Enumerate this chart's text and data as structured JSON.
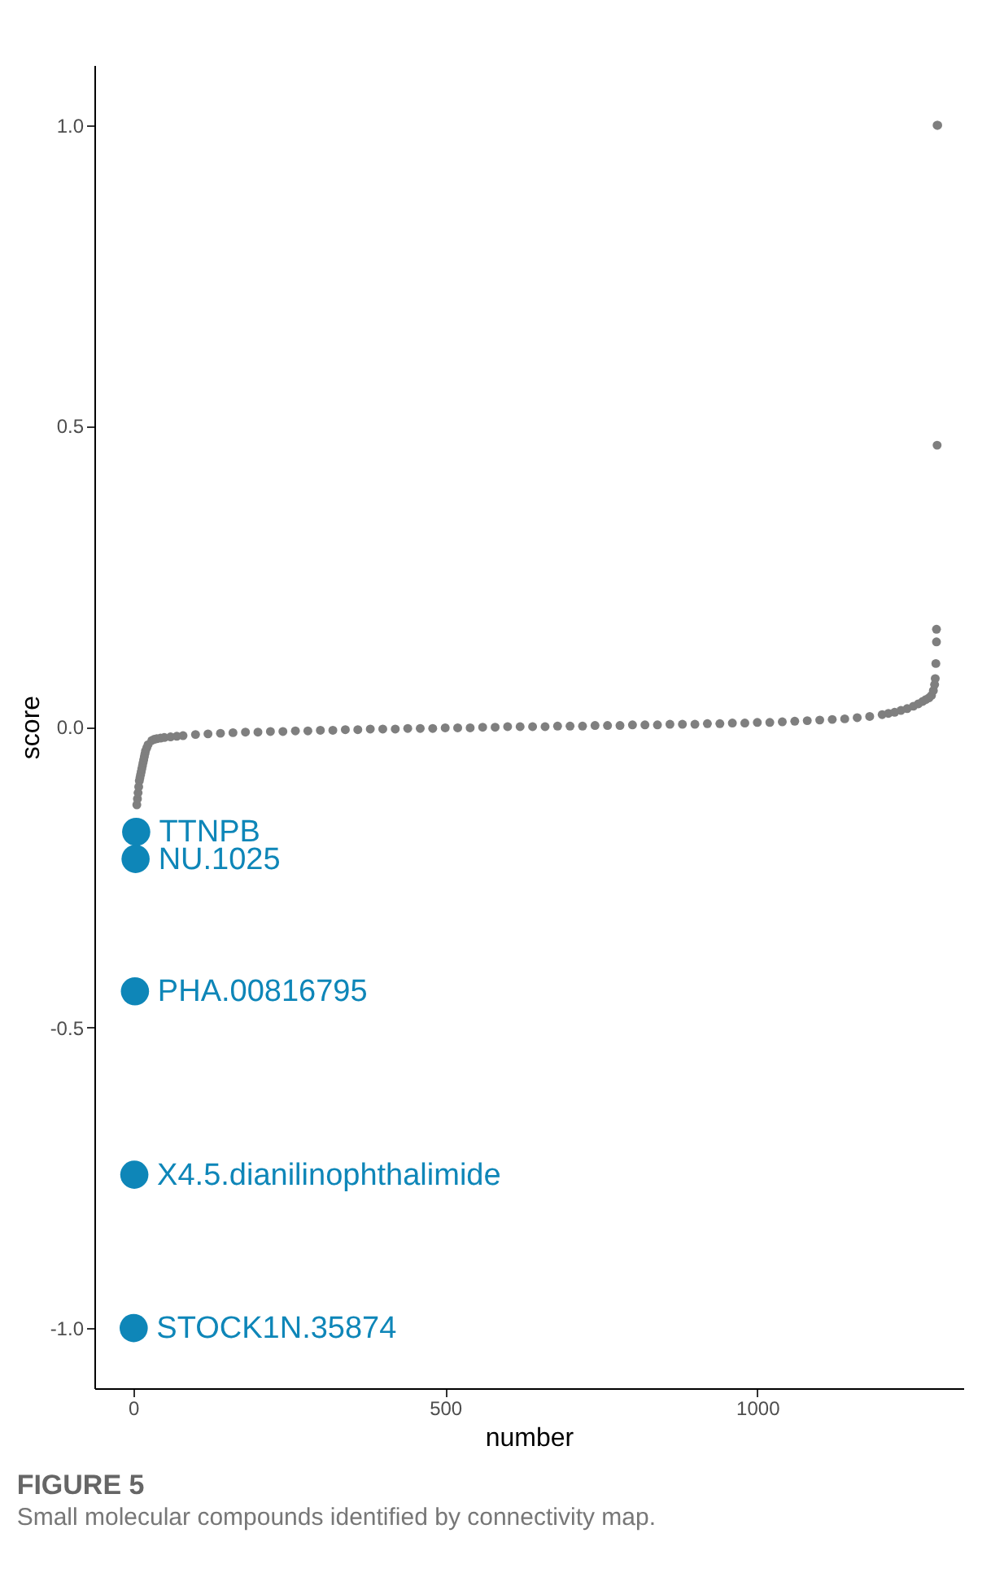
{
  "chart_data": {
    "type": "scatter",
    "title": "FIGURE 5",
    "subtitle": "Small molecular compounds identified by connectivity map.",
    "xlabel": "number",
    "ylabel": "score",
    "xlim": [
      -62,
      1330
    ],
    "ylim": [
      -1.1,
      1.1
    ],
    "xticks": [
      0,
      500,
      1000
    ],
    "yticks": [
      {
        "value": -1.0,
        "label": "-1.0"
      },
      {
        "value": -0.5,
        "label": "-0.5"
      },
      {
        "value": 0.0,
        "label": "0.0"
      },
      {
        "value": 0.5,
        "label": "0.5"
      },
      {
        "value": 1.0,
        "label": "1.0"
      }
    ],
    "grid": false,
    "series": [
      {
        "color": "#7f7f7f",
        "x": [
          6,
          7,
          8,
          9,
          10,
          11,
          12,
          13,
          14,
          15,
          16,
          17,
          18,
          19,
          20,
          22,
          24,
          30,
          34,
          38,
          44,
          50,
          60,
          70,
          80,
          100,
          120,
          140,
          160,
          180,
          200,
          220,
          240,
          260,
          280,
          300,
          320,
          340,
          360,
          380,
          400,
          420,
          440,
          460,
          480,
          500,
          520,
          540,
          560,
          580,
          600,
          620,
          640,
          660,
          680,
          700,
          720,
          740,
          760,
          780,
          800,
          820,
          840,
          860,
          880,
          900,
          920,
          940,
          960,
          980,
          1000,
          1020,
          1040,
          1060,
          1080,
          1100,
          1120,
          1140,
          1160,
          1180,
          1200,
          1210,
          1220,
          1230,
          1240,
          1250,
          1258,
          1265,
          1270,
          1275,
          1279,
          1282,
          1284,
          1285,
          1286,
          1287,
          1287,
          1288,
          1288,
          1289
        ],
        "values": [
          -0.13,
          -0.12,
          -0.11,
          -0.1,
          -0.09,
          -0.085,
          -0.08,
          -0.075,
          -0.07,
          -0.065,
          -0.06,
          -0.055,
          -0.05,
          -0.045,
          -0.04,
          -0.035,
          -0.03,
          -0.023,
          -0.021,
          -0.02,
          -0.019,
          -0.018,
          -0.017,
          -0.016,
          -0.015,
          -0.013,
          -0.012,
          -0.011,
          -0.01,
          -0.009,
          -0.009,
          -0.008,
          -0.008,
          -0.007,
          -0.007,
          -0.006,
          -0.006,
          -0.005,
          -0.005,
          -0.004,
          -0.004,
          -0.004,
          -0.003,
          -0.003,
          -0.003,
          -0.002,
          -0.002,
          -0.002,
          -0.001,
          -0.001,
          0.0,
          0.0,
          0.0,
          0.0,
          0.001,
          0.001,
          0.001,
          0.002,
          0.002,
          0.002,
          0.003,
          0.003,
          0.003,
          0.004,
          0.004,
          0.004,
          0.005,
          0.005,
          0.006,
          0.006,
          0.007,
          0.007,
          0.008,
          0.009,
          0.01,
          0.011,
          0.012,
          0.013,
          0.015,
          0.017,
          0.02,
          0.022,
          0.024,
          0.027,
          0.03,
          0.034,
          0.038,
          0.042,
          0.045,
          0.048,
          0.052,
          0.06,
          0.07,
          0.08,
          0.105,
          0.141,
          0.162,
          0.468,
          1.0,
          1.0
        ]
      },
      {
        "color": "#0e86b8",
        "x": [
          1,
          2,
          3,
          4,
          5
        ],
        "values": [
          -1.0,
          -0.745,
          -0.44,
          -0.22,
          -0.175
        ]
      }
    ],
    "annotations": [
      {
        "text": "STOCK1N.35874",
        "x": 1,
        "y": -1.0
      },
      {
        "text": "X4.5.dianilinophthalimide",
        "x": 2,
        "y": -0.745
      },
      {
        "text": "PHA.00816795",
        "x": 3,
        "y": -0.44
      },
      {
        "text": "NU.1025",
        "x": 4,
        "y": -0.22
      },
      {
        "text": "TTNPB",
        "x": 5,
        "y": -0.175
      }
    ]
  }
}
